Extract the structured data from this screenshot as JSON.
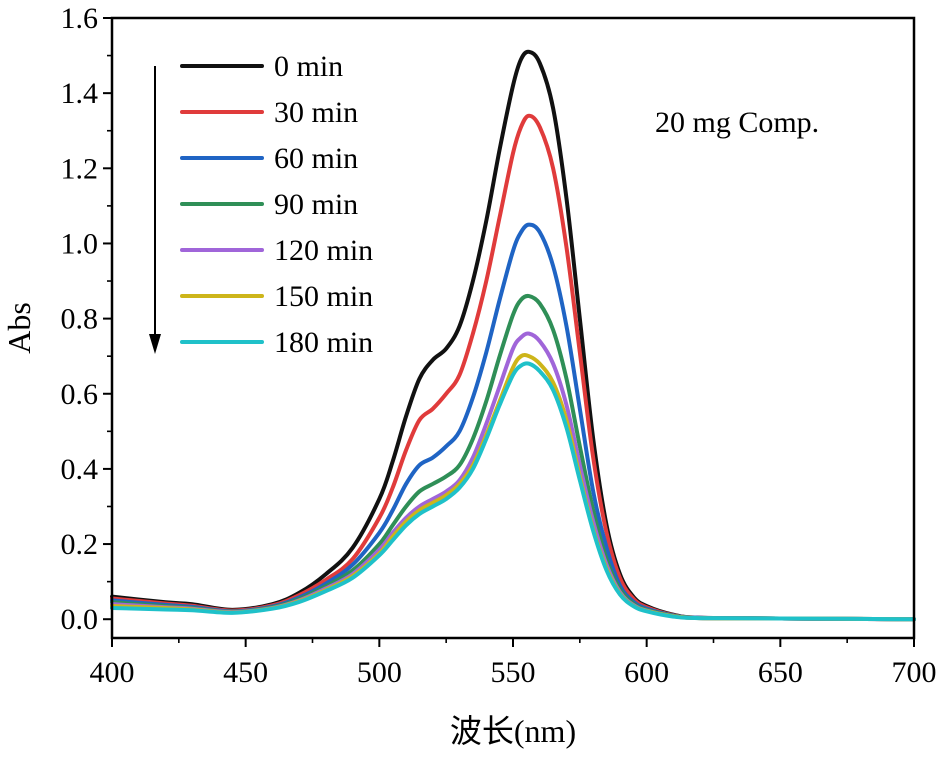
{
  "chart_data": {
    "type": "line",
    "title": "",
    "xlabel": "波长(nm)",
    "ylabel": "Abs",
    "xlim": [
      400,
      700
    ],
    "ylim": [
      -0.05,
      1.6
    ],
    "x_ticks": [
      400,
      450,
      500,
      550,
      600,
      650,
      700
    ],
    "y_ticks": [
      0.0,
      0.2,
      0.4,
      0.6,
      0.8,
      1.0,
      1.2,
      1.4,
      1.6
    ],
    "x_tick_labels": [
      "400",
      "450",
      "500",
      "550",
      "600",
      "650",
      "700"
    ],
    "y_tick_labels": [
      "0.0",
      "0.2",
      "0.4",
      "0.6",
      "0.8",
      "1.0",
      "1.2",
      "1.4",
      "1.6"
    ],
    "annotation": "20 mg Comp.",
    "legend_position": "top-left",
    "arrow_direction": "down",
    "x": [
      400,
      420,
      430,
      445,
      460,
      470,
      480,
      490,
      500,
      505,
      510,
      515,
      520,
      525,
      530,
      535,
      540,
      545,
      550,
      553,
      556,
      560,
      565,
      570,
      575,
      580,
      585,
      590,
      595,
      600,
      610,
      620,
      650,
      700
    ],
    "series": [
      {
        "name": "0 min",
        "color": "#111111",
        "values": [
          0.06,
          0.045,
          0.04,
          0.025,
          0.04,
          0.07,
          0.12,
          0.19,
          0.32,
          0.42,
          0.54,
          0.64,
          0.69,
          0.72,
          0.78,
          0.9,
          1.06,
          1.25,
          1.42,
          1.49,
          1.51,
          1.48,
          1.36,
          1.12,
          0.8,
          0.48,
          0.25,
          0.12,
          0.06,
          0.035,
          0.012,
          0.004,
          0.002,
          0.0
        ]
      },
      {
        "name": "30 min",
        "color": "#e03b3b",
        "values": [
          0.055,
          0.042,
          0.036,
          0.023,
          0.037,
          0.064,
          0.105,
          0.16,
          0.27,
          0.35,
          0.45,
          0.53,
          0.56,
          0.6,
          0.65,
          0.76,
          0.9,
          1.07,
          1.24,
          1.31,
          1.34,
          1.31,
          1.2,
          0.99,
          0.71,
          0.43,
          0.23,
          0.11,
          0.055,
          0.032,
          0.011,
          0.004,
          0.002,
          0.0
        ]
      },
      {
        "name": "60 min",
        "color": "#1f64c4",
        "values": [
          0.05,
          0.038,
          0.033,
          0.021,
          0.034,
          0.058,
          0.095,
          0.145,
          0.23,
          0.29,
          0.36,
          0.41,
          0.43,
          0.46,
          0.5,
          0.59,
          0.71,
          0.85,
          0.98,
          1.03,
          1.05,
          1.03,
          0.94,
          0.78,
          0.56,
          0.34,
          0.19,
          0.09,
          0.047,
          0.028,
          0.01,
          0.004,
          0.002,
          0.0
        ]
      },
      {
        "name": "90 min",
        "color": "#2f8f57",
        "values": [
          0.045,
          0.035,
          0.03,
          0.02,
          0.032,
          0.054,
          0.088,
          0.13,
          0.2,
          0.25,
          0.3,
          0.34,
          0.36,
          0.38,
          0.41,
          0.48,
          0.58,
          0.7,
          0.81,
          0.85,
          0.86,
          0.84,
          0.77,
          0.64,
          0.46,
          0.29,
          0.16,
          0.08,
          0.042,
          0.025,
          0.009,
          0.003,
          0.002,
          0.0
        ]
      },
      {
        "name": "120 min",
        "color": "#a065d9",
        "values": [
          0.04,
          0.032,
          0.028,
          0.019,
          0.03,
          0.05,
          0.082,
          0.12,
          0.185,
          0.23,
          0.27,
          0.3,
          0.32,
          0.34,
          0.37,
          0.43,
          0.52,
          0.62,
          0.72,
          0.75,
          0.76,
          0.74,
          0.68,
          0.57,
          0.41,
          0.26,
          0.145,
          0.072,
          0.038,
          0.023,
          0.008,
          0.003,
          0.002,
          0.0
        ]
      },
      {
        "name": "150 min",
        "color": "#cdb51a",
        "values": [
          0.035,
          0.03,
          0.026,
          0.018,
          0.029,
          0.048,
          0.078,
          0.115,
          0.175,
          0.22,
          0.26,
          0.29,
          0.31,
          0.33,
          0.36,
          0.41,
          0.49,
          0.58,
          0.67,
          0.7,
          0.7,
          0.68,
          0.63,
          0.53,
          0.38,
          0.24,
          0.135,
          0.068,
          0.036,
          0.022,
          0.008,
          0.003,
          0.002,
          0.0
        ]
      },
      {
        "name": "180 min",
        "color": "#1fc1c9",
        "values": [
          0.03,
          0.026,
          0.024,
          0.017,
          0.028,
          0.046,
          0.075,
          0.11,
          0.17,
          0.21,
          0.25,
          0.28,
          0.3,
          0.32,
          0.35,
          0.4,
          0.48,
          0.57,
          0.65,
          0.675,
          0.68,
          0.66,
          0.61,
          0.51,
          0.37,
          0.235,
          0.13,
          0.066,
          0.035,
          0.021,
          0.007,
          0.003,
          0.002,
          0.0
        ]
      }
    ]
  }
}
